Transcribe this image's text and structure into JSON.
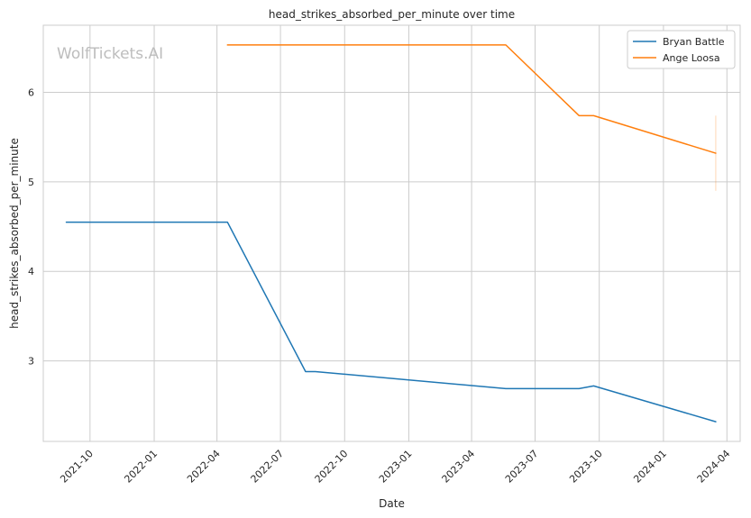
{
  "chart_data": {
    "type": "line",
    "title": "head_strikes_absorbed_per_minute over time",
    "xlabel": "Date",
    "ylabel": "head_strikes_absorbed_per_minute",
    "watermark": "WolfTickets.AI",
    "x_ticks": [
      "2021-10",
      "2022-01",
      "2022-04",
      "2022-07",
      "2022-10",
      "2023-01",
      "2023-04",
      "2023-07",
      "2023-10",
      "2024-01",
      "2024-04"
    ],
    "y_ticks": [
      3,
      4,
      5,
      6
    ],
    "xlim": [
      "2021-07-26",
      "2024-04-20"
    ],
    "ylim": [
      2.1,
      6.75
    ],
    "grid": true,
    "legend_position": "top-right",
    "series": [
      {
        "name": "Bryan Battle",
        "color": "#1f77b4",
        "points": [
          {
            "x": "2021-08-28",
            "y": 4.55
          },
          {
            "x": "2022-04-16",
            "y": 4.55
          },
          {
            "x": "2022-08-06",
            "y": 2.88
          },
          {
            "x": "2022-08-20",
            "y": 2.88
          },
          {
            "x": "2023-05-20",
            "y": 2.69
          },
          {
            "x": "2023-09-02",
            "y": 2.69
          },
          {
            "x": "2023-09-23",
            "y": 2.72
          },
          {
            "x": "2024-03-16",
            "y": 2.32
          }
        ]
      },
      {
        "name": "Ange Loosa",
        "color": "#ff7f0e",
        "points": [
          {
            "x": "2022-04-16",
            "y": 6.53
          },
          {
            "x": "2023-05-20",
            "y": 6.53
          },
          {
            "x": "2023-09-02",
            "y": 5.74
          },
          {
            "x": "2023-09-23",
            "y": 5.74
          },
          {
            "x": "2024-03-16",
            "y": 5.32
          }
        ],
        "error_bar": {
          "x": "2024-03-16",
          "low": 4.9,
          "high": 5.74
        }
      }
    ]
  }
}
